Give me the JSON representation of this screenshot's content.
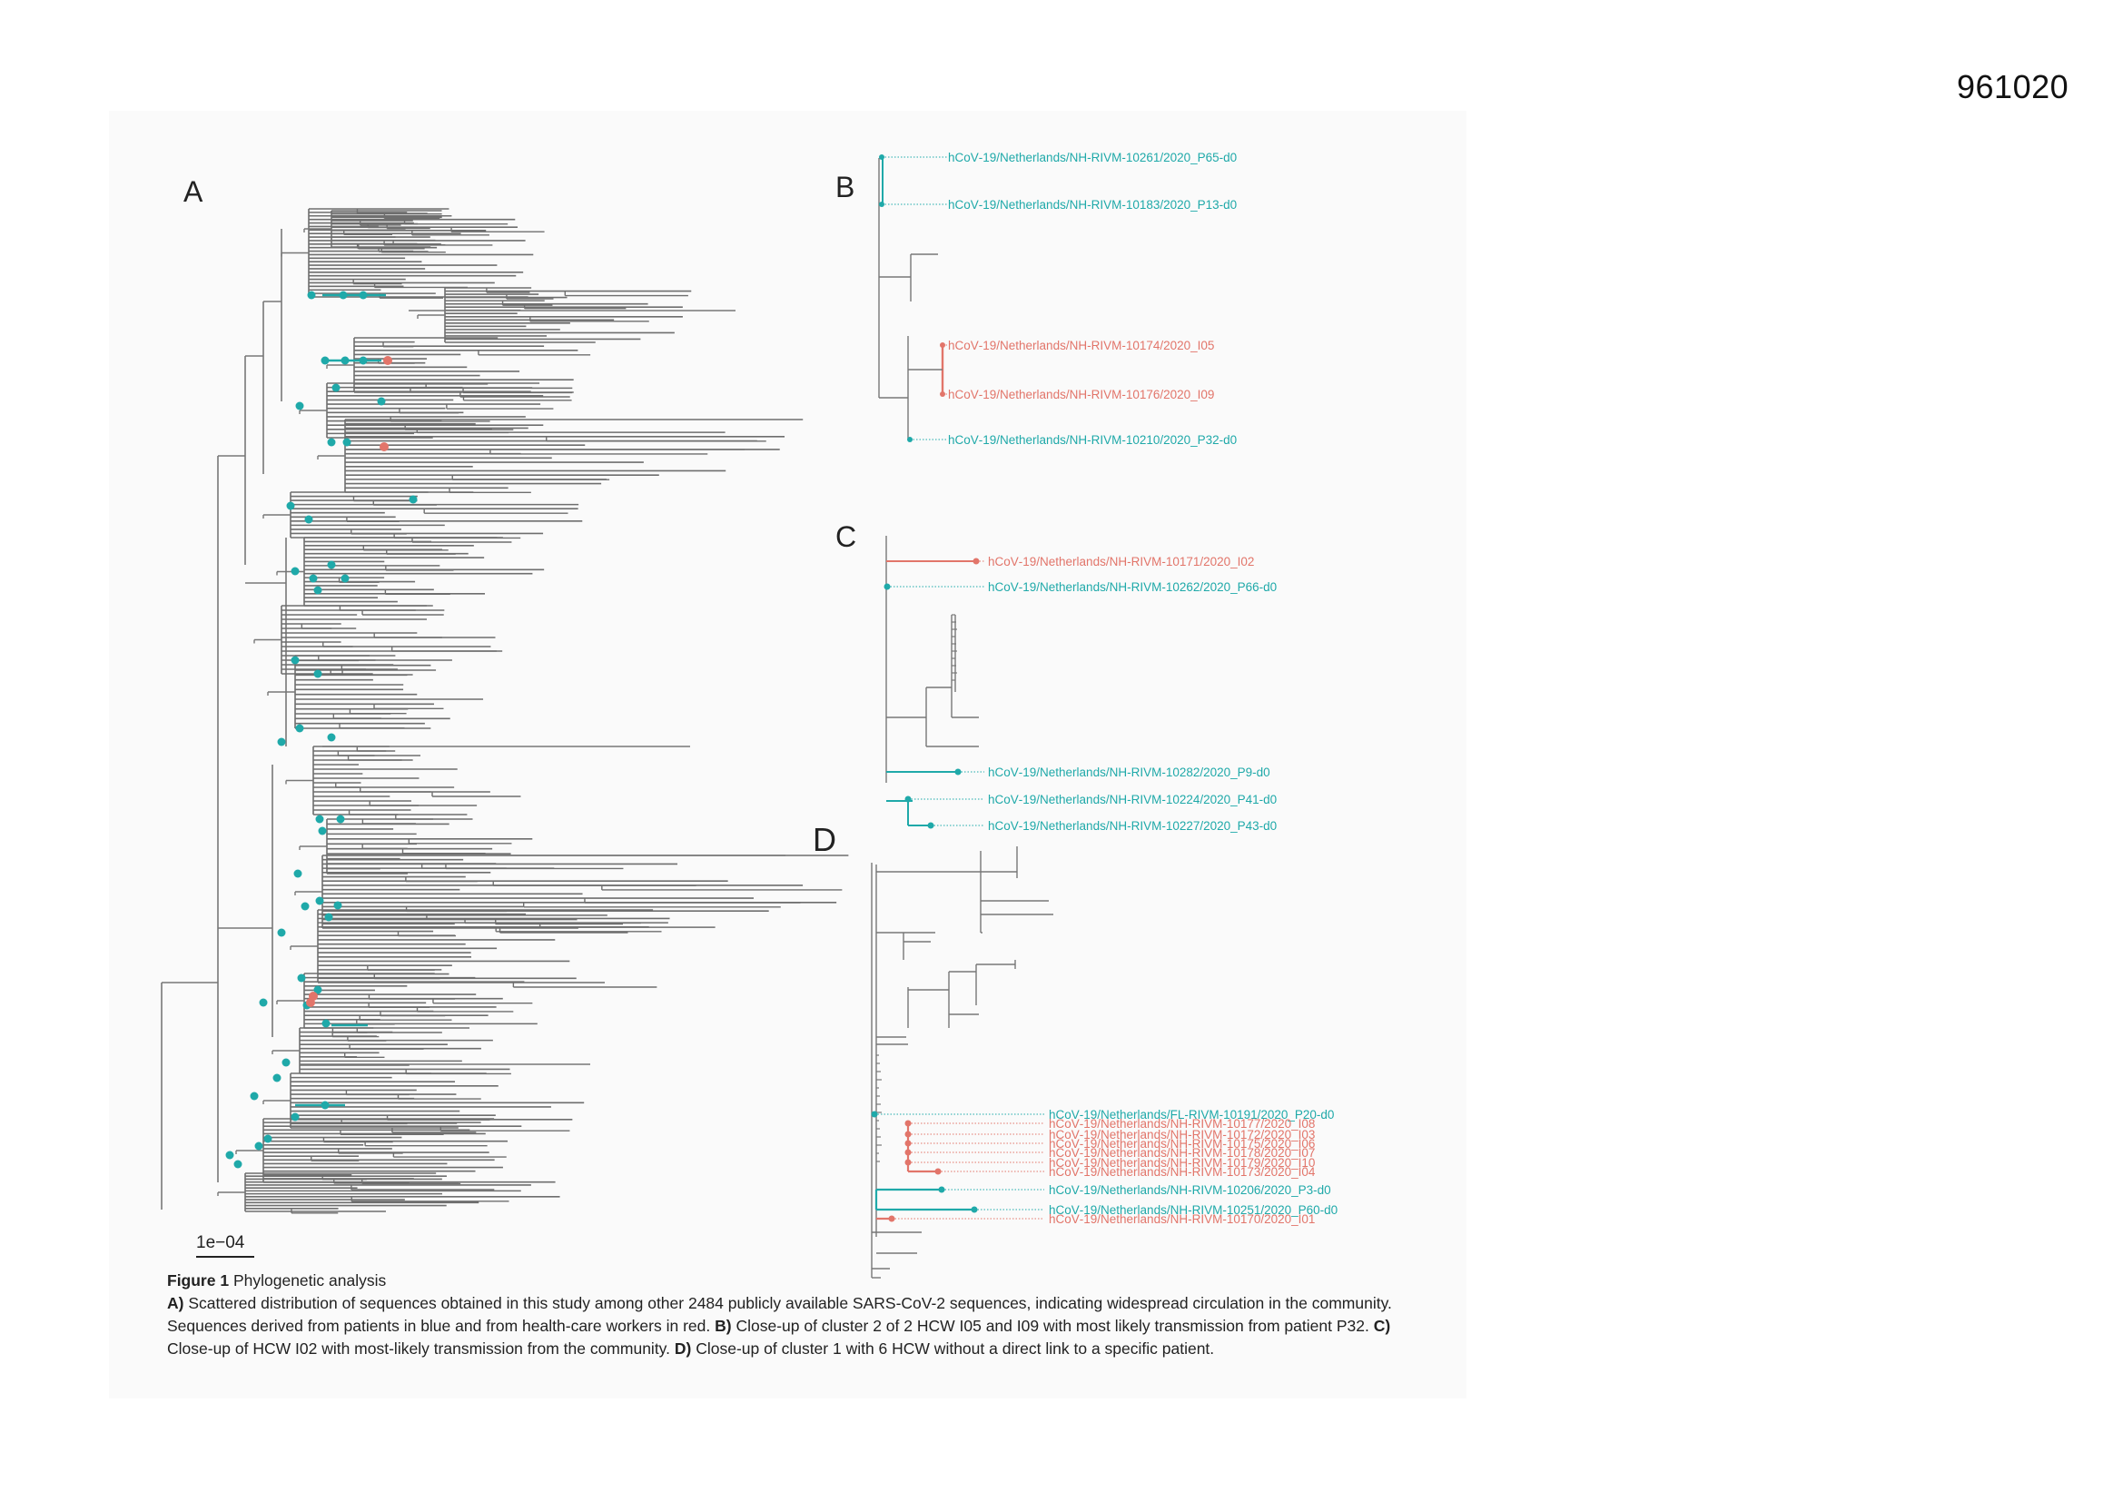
{
  "page": {
    "id": "961020"
  },
  "colors": {
    "branch": "#777777",
    "dense_branch": "#6e6e6e",
    "patient": "#1fa9a9",
    "hcw": "#e2756a"
  },
  "panels": {
    "A": {
      "label": "A",
      "scale_bar_label": "1e−04"
    },
    "B": {
      "label": "B",
      "tips": [
        {
          "text": "hCoV‑19/Netherlands/NH‑RIVM‑10261/2020_P65‑d0",
          "group": "patient"
        },
        {
          "text": "hCoV‑19/Netherlands/NH‑RIVM‑10183/2020_P13‑d0",
          "group": "patient"
        },
        {
          "text": "hCoV‑19/Netherlands/NH‑RIVM‑10174/2020_I05",
          "group": "hcw"
        },
        {
          "text": "hCoV‑19/Netherlands/NH‑RIVM‑10176/2020_I09",
          "group": "hcw"
        },
        {
          "text": "hCoV‑19/Netherlands/NH‑RIVM‑10210/2020_P32‑d0",
          "group": "patient"
        }
      ]
    },
    "C": {
      "label": "C",
      "tips": [
        {
          "text": "hCoV‑19/Netherlands/NH‑RIVM‑10171/2020_I02",
          "group": "hcw"
        },
        {
          "text": "hCoV‑19/Netherlands/NH‑RIVM‑10262/2020_P66‑d0",
          "group": "patient"
        },
        {
          "text": "hCoV‑19/Netherlands/NH‑RIVM‑10282/2020_P9‑d0",
          "group": "patient"
        },
        {
          "text": "hCoV‑19/Netherlands/NH‑RIVM‑10224/2020_P41‑d0",
          "group": "patient"
        },
        {
          "text": "hCoV‑19/Netherlands/NH‑RIVM‑10227/2020_P43‑d0",
          "group": "patient"
        }
      ]
    },
    "D": {
      "label": "D",
      "tips": [
        {
          "text": "hCoV‑19/Netherlands/FL‑RIVM‑10191/2020_P20‑d0",
          "group": "patient"
        },
        {
          "text": "hCoV‑19/Netherlands/NH‑RIVM‑10177/2020_I08",
          "group": "hcw"
        },
        {
          "text": "hCoV‑19/Netherlands/NH‑RIVM‑10172/2020_I03",
          "group": "hcw"
        },
        {
          "text": "hCoV‑19/Netherlands/NH‑RIVM‑10175/2020_I06",
          "group": "hcw"
        },
        {
          "text": "hCoV‑19/Netherlands/NH‑RIVM‑10178/2020_I07",
          "group": "hcw"
        },
        {
          "text": "hCoV‑19/Netherlands/NH‑RIVM‑10179/2020_I10",
          "group": "hcw"
        },
        {
          "text": "hCoV‑19/Netherlands/NH‑RIVM‑10173/2020_I04",
          "group": "hcw"
        },
        {
          "text": "hCoV‑19/Netherlands/NH‑RIVM‑10206/2020_P3‑d0",
          "group": "patient"
        },
        {
          "text": "hCoV‑19/Netherlands/NH‑RIVM‑10251/2020_P60‑d0",
          "group": "patient"
        },
        {
          "text": "hCoV‑19/Netherlands/NH‑RIVM‑10170/2020_I01",
          "group": "hcw"
        }
      ]
    }
  },
  "caption": {
    "figure_label": "Figure 1",
    "title": "Phylogenetic analysis",
    "a_label": "A)",
    "a_text": "Scattered distribution of sequences obtained in this study among other 2484 publicly available SARS-CoV-2 sequences, indicating widespread circulation in the community. Sequences derived from patients in blue and from health-care workers in red.",
    "b_label": "B)",
    "b_text": "Close-up of cluster 2 of 2 HCW I05 and I09 with most likely transmission from patient P32.",
    "c_label": "C)",
    "c_text": "Close-up of HCW I02 with most-likely transmission from the community.",
    "d_label": "D)",
    "d_text": "Close-up of cluster 1 with 6 HCW without a direct link to a specific patient."
  }
}
